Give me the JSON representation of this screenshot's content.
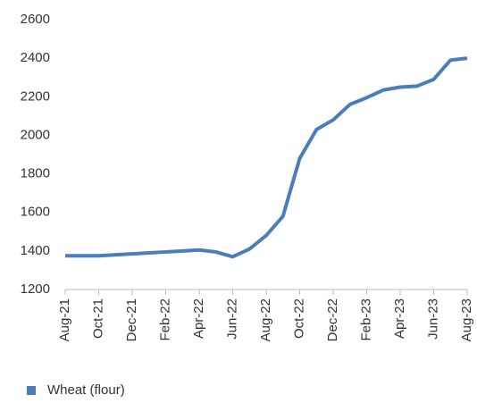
{
  "chart_data": {
    "type": "line",
    "categories": [
      "Aug-21",
      null,
      "Oct-21",
      null,
      "Dec-21",
      null,
      "Feb-22",
      null,
      "Apr-22",
      null,
      "Jun-22",
      null,
      "Aug-22",
      null,
      "Oct-22",
      null,
      "Dec-22",
      null,
      "Feb-23",
      null,
      "Apr-23",
      null,
      "Jun-23",
      null,
      "Aug-23"
    ],
    "series": [
      {
        "name": "Wheat (flour)",
        "color": "#4a7ebb",
        "values": [
          1375,
          1375,
          1375,
          1380,
          1385,
          1390,
          1395,
          1400,
          1405,
          1395,
          1370,
          1410,
          1480,
          1580,
          1880,
          2030,
          2080,
          2160,
          2195,
          2235,
          2250,
          2255,
          2290,
          2390,
          2400
        ]
      }
    ],
    "ylim": [
      1200,
      2600
    ],
    "yticks": [
      1200,
      1400,
      1600,
      1800,
      2000,
      2200,
      2400,
      2600
    ],
    "grid": false,
    "legend": "bottom-left"
  }
}
